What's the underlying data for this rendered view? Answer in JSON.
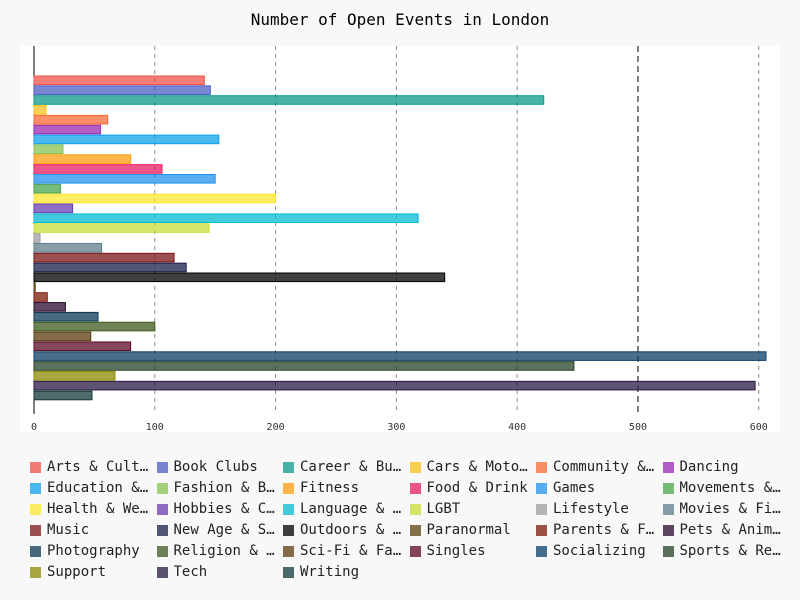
{
  "chart_data": {
    "type": "bar",
    "orientation": "horizontal",
    "title": "Number of Open Events in London",
    "xlabel": "",
    "ylabel": "",
    "xlim": [
      0,
      606
    ],
    "xticks": [
      0,
      100,
      200,
      300,
      400,
      500,
      600
    ],
    "grid": "vertical dashed",
    "legend_position": "bottom",
    "series": [
      {
        "name": "Arts & Culture",
        "value": 141,
        "color": "#f0514a"
      },
      {
        "name": "Book Clubs",
        "value": 146,
        "color": "#4d5ec4"
      },
      {
        "name": "Career & Business",
        "value": 422,
        "color": "#0e9a8b"
      },
      {
        "name": "Cars & Motorcycles",
        "value": 10,
        "color": "#fbc21a"
      },
      {
        "name": "Community & Environment",
        "value": 61,
        "color": "#fb6a34"
      },
      {
        "name": "Dancing",
        "value": 55,
        "color": "#9a2ab3"
      },
      {
        "name": "Education & Learning",
        "value": 153,
        "color": "#0fa2ec"
      },
      {
        "name": "Fashion & Beauty",
        "value": 24,
        "color": "#85c450"
      },
      {
        "name": "Fitness",
        "value": 80,
        "color": "#fb9d0e"
      },
      {
        "name": "Food & Drink",
        "value": 106,
        "color": "#e81d60"
      },
      {
        "name": "Games",
        "value": 150,
        "color": "#2193ee"
      },
      {
        "name": "Movements & Politics",
        "value": 22,
        "color": "#4ba54f"
      },
      {
        "name": "Health & Wellbeing",
        "value": 200,
        "color": "#fde52f"
      },
      {
        "name": "Hobbies & Crafts",
        "value": 32,
        "color": "#6b3cb4"
      },
      {
        "name": "Language & Ethnic Identity",
        "value": 318,
        "color": "#05bbd0"
      },
      {
        "name": "LGBT",
        "value": 145,
        "color": "#cbdc3a"
      },
      {
        "name": "Lifestyle",
        "value": 5,
        "color": "#9e9e9e"
      },
      {
        "name": "Movies & Film",
        "value": 56,
        "color": "#5f7d8b"
      },
      {
        "name": "Music",
        "value": 116,
        "color": "#7a1714"
      },
      {
        "name": "New Age & Spirituality",
        "value": 126,
        "color": "#1a1f4a"
      },
      {
        "name": "Outdoors & Adventure",
        "value": 340,
        "color": "#000000"
      },
      {
        "name": "Paranormal",
        "value": 1,
        "color": "#5e4212"
      },
      {
        "name": "Parents & Family",
        "value": 11,
        "color": "#7d1a0a"
      },
      {
        "name": "Pets & Animals",
        "value": 26,
        "color": "#2a0a2e"
      },
      {
        "name": "Photography",
        "value": 53,
        "color": "#0b3a52"
      },
      {
        "name": "Religion & Beliefs",
        "value": 100,
        "color": "#3e5a1e"
      },
      {
        "name": "Sci-Fi & Fantasy",
        "value": 47,
        "color": "#5c3b0e"
      },
      {
        "name": "Singles",
        "value": 80,
        "color": "#5c0a28"
      },
      {
        "name": "Socializing",
        "value": 606,
        "color": "#0b3d68"
      },
      {
        "name": "Sports & Recreation",
        "value": 447,
        "color": "#244124"
      },
      {
        "name": "Support",
        "value": 67,
        "color": "#8f8a04"
      },
      {
        "name": "Tech",
        "value": 597,
        "color": "#2a1a44"
      },
      {
        "name": "Writing",
        "value": 48,
        "color": "#123a38"
      }
    ]
  }
}
